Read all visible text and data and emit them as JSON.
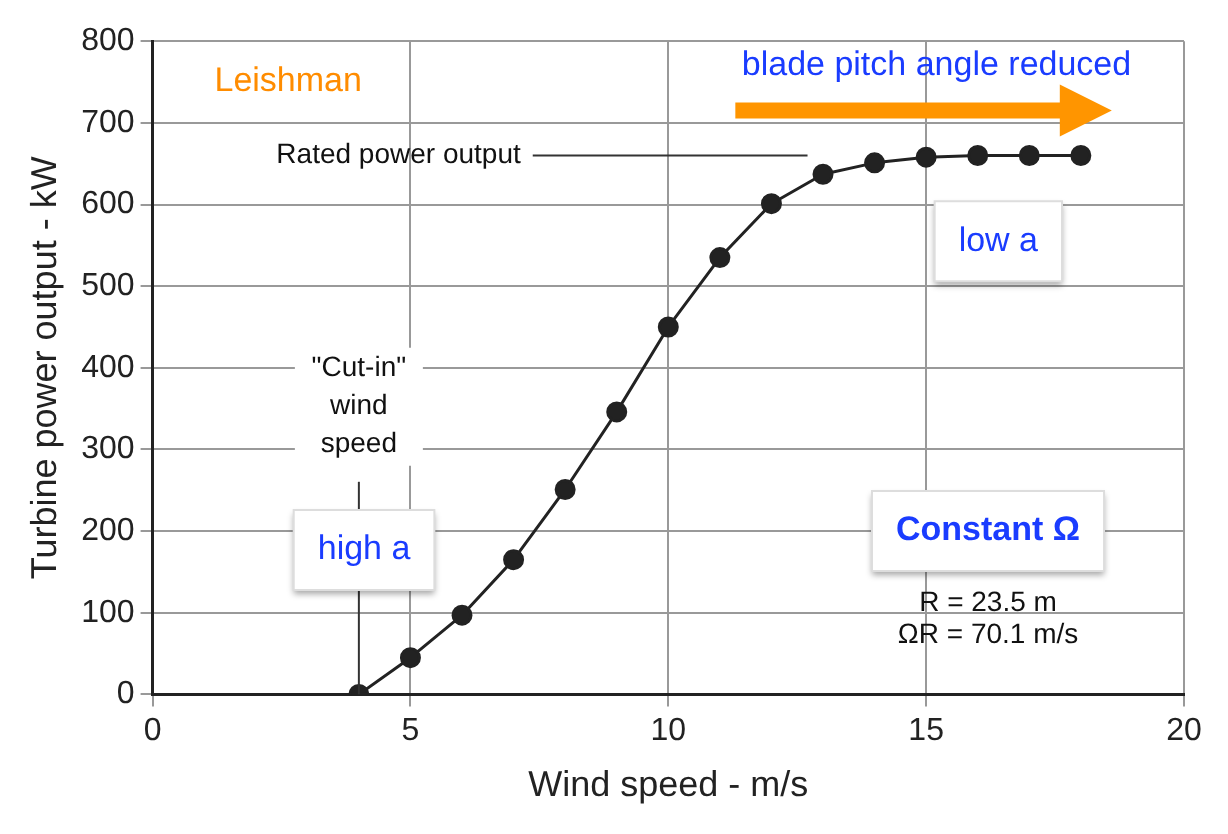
{
  "chart_data": {
    "type": "line",
    "xlabel": "Wind speed - m/s",
    "ylabel": "Turbine power output - kW",
    "x": [
      4,
      5,
      6,
      7,
      8,
      9,
      10,
      11,
      12,
      13,
      14,
      15,
      16,
      17,
      18
    ],
    "series": [
      {
        "color": "#222222",
        "values": [
          0,
          45,
          97,
          165,
          251,
          346,
          450,
          535,
          601,
          637,
          651,
          658,
          660,
          660,
          660
        ]
      }
    ],
    "xlim": [
      0,
      20
    ],
    "xticks": [
      0,
      5,
      10,
      15,
      20
    ],
    "ylim": [
      0,
      800
    ],
    "yticks": [
      0,
      100,
      200,
      300,
      400,
      500,
      600,
      700,
      800
    ],
    "grid": true,
    "legend": false,
    "marker": "circle",
    "line_style": "solid",
    "annotations": [
      "Leishman",
      "blade pitch angle reduced",
      "Rated power output",
      "low a",
      {
        "text": "\"Cut-in\" wind speed",
        "x": 4,
        "y": 0
      },
      "high a",
      "Constant Ω",
      "R = 23.5 m",
      "ΩR = 70.1 m/s"
    ]
  }
}
